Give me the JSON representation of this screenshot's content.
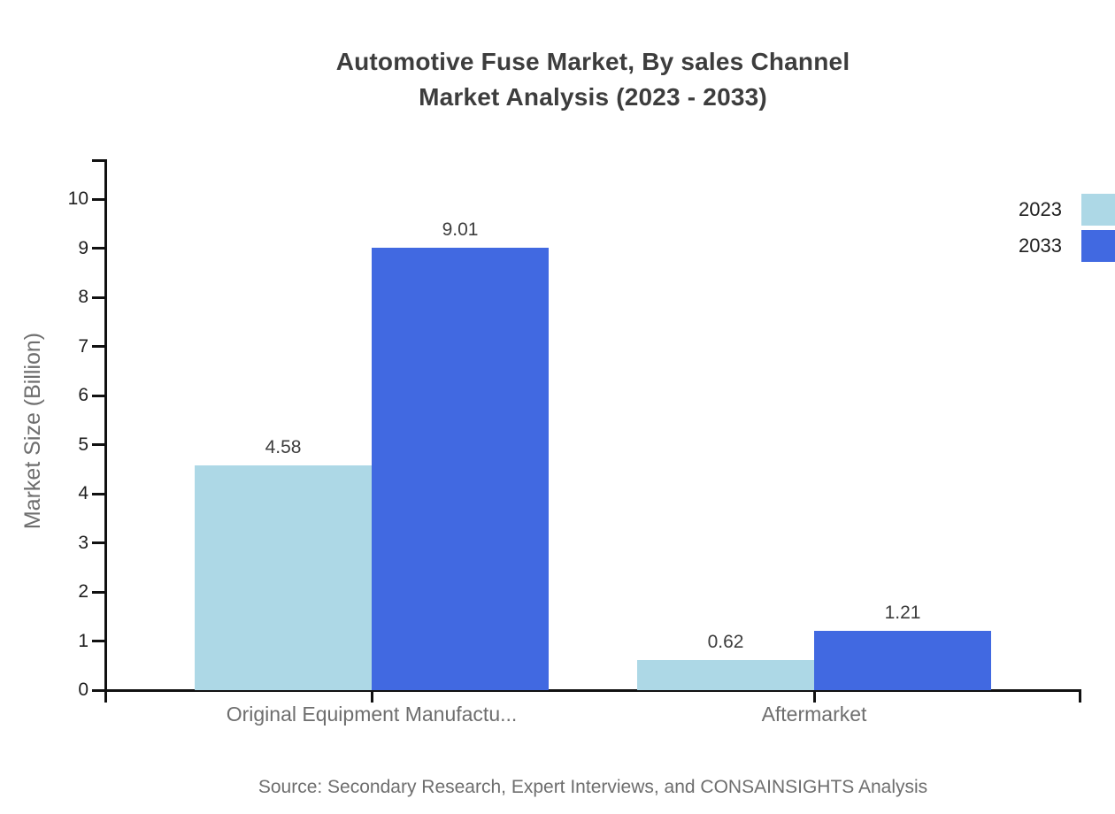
{
  "title": {
    "line1": "Automotive Fuse Market, By sales Channel",
    "line2": "Market Analysis (2023 - 2033)"
  },
  "y_axis": {
    "label": "Market Size (Billion)"
  },
  "legend": {
    "items": [
      {
        "label": "2023",
        "color": "#ADD8E6"
      },
      {
        "label": "2033",
        "color": "#4169E1"
      }
    ]
  },
  "footer": {
    "source": "Source: Secondary Research, Expert Interviews, and CONSAINSIGHTS Analysis"
  },
  "chart_data": {
    "type": "bar",
    "title": "Automotive Fuse Market, By sales Channel Market Analysis (2023 - 2033)",
    "categories": [
      "Original Equipment Manufactu...",
      "Aftermarket"
    ],
    "series": [
      {
        "name": "2023",
        "color": "#ADD8E6",
        "values": [
          4.58,
          0.62
        ]
      },
      {
        "name": "2033",
        "color": "#4169E1",
        "values": [
          9.01,
          1.21
        ]
      }
    ],
    "xlabel": "",
    "ylabel": "Market Size (Billion)",
    "ylim": [
      0,
      10
    ],
    "yticks": [
      0,
      1,
      2,
      3,
      4,
      5,
      6,
      7,
      8,
      9,
      10
    ],
    "grid": false,
    "legend_position": "top-right",
    "value_labels": true,
    "axis_color": "#111111"
  }
}
